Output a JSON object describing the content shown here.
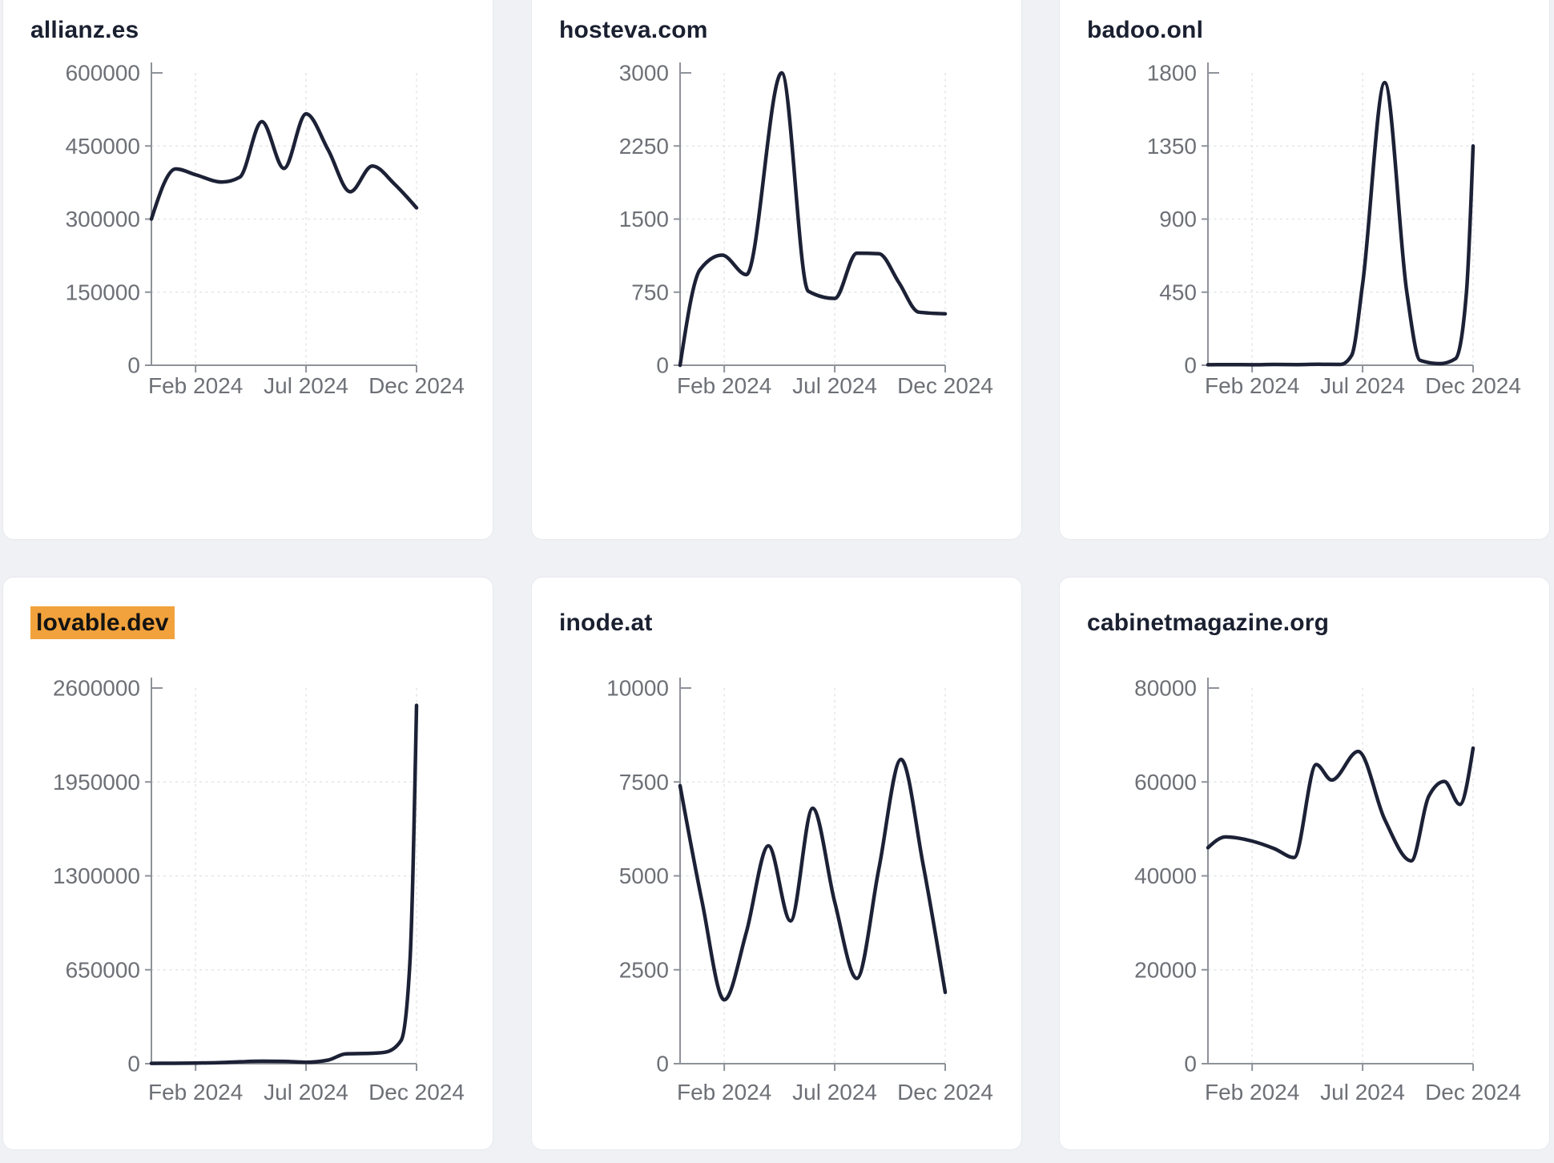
{
  "style": {
    "page_background": "#f0f1f5",
    "card_background": "#ffffff",
    "card_border": "#e7e9ee",
    "title_color": "#1a2030",
    "highlight_color": "#f1a23c",
    "line_color": "#1c2136",
    "axis_color": "#8e9299",
    "tick_label_color": "#6d7076",
    "grid_color": "#e3e5e9"
  },
  "chart_data": [
    {
      "type": "line",
      "title": "allianz.es",
      "highlighted": false,
      "x_range": [
        0,
        12
      ],
      "x_tick_positions": [
        2,
        7,
        12
      ],
      "x_tick_labels": [
        "Feb 2024",
        "Jul 2024",
        "Dec 2024"
      ],
      "ylim": [
        0,
        600000
      ],
      "y_ticks": [
        0,
        150000,
        300000,
        450000,
        600000
      ],
      "points": [
        [
          0,
          300000
        ],
        [
          1.1,
          403000
        ],
        [
          2,
          391000
        ],
        [
          3.2,
          376000
        ],
        [
          4,
          386000
        ],
        [
          5,
          500000
        ],
        [
          6,
          404000
        ],
        [
          7,
          516000
        ],
        [
          8,
          442000
        ],
        [
          9,
          356000
        ],
        [
          10,
          409000
        ],
        [
          11,
          372000
        ],
        [
          12,
          323000
        ]
      ]
    },
    {
      "type": "line",
      "title": "hosteva.com",
      "highlighted": false,
      "x_range": [
        0,
        12
      ],
      "x_tick_positions": [
        2,
        7,
        12
      ],
      "x_tick_labels": [
        "Feb 2024",
        "Jul 2024",
        "Dec 2024"
      ],
      "ylim": [
        0,
        3000
      ],
      "y_ticks": [
        0,
        750,
        1500,
        2250,
        3000
      ],
      "points": [
        [
          0,
          0
        ],
        [
          0.9,
          980
        ],
        [
          1.9,
          1130
        ],
        [
          3,
          930
        ],
        [
          4.6,
          3000
        ],
        [
          5.8,
          760
        ],
        [
          7,
          685
        ],
        [
          8,
          1150
        ],
        [
          9,
          1145
        ],
        [
          9.9,
          850
        ],
        [
          10.8,
          545
        ],
        [
          12,
          528
        ]
      ]
    },
    {
      "type": "line",
      "title": "badoo.onl",
      "highlighted": false,
      "x_range": [
        0,
        12
      ],
      "x_tick_positions": [
        2,
        7,
        12
      ],
      "x_tick_labels": [
        "Feb 2024",
        "Jul 2024",
        "Dec 2024"
      ],
      "ylim": [
        0,
        1800
      ],
      "y_ticks": [
        0,
        450,
        900,
        1350,
        1800
      ],
      "points": [
        [
          0,
          3
        ],
        [
          1,
          4
        ],
        [
          2,
          3
        ],
        [
          3,
          5
        ],
        [
          4,
          4
        ],
        [
          5,
          6
        ],
        [
          6,
          5
        ],
        [
          6.5,
          60
        ],
        [
          7,
          500
        ],
        [
          8,
          1740
        ],
        [
          9,
          450
        ],
        [
          9.6,
          30
        ],
        [
          10.5,
          10
        ],
        [
          11.2,
          40
        ],
        [
          11.7,
          450
        ],
        [
          12,
          1350
        ]
      ]
    },
    {
      "type": "line",
      "title": "lovable.dev",
      "highlighted": true,
      "x_range": [
        0,
        12
      ],
      "x_tick_positions": [
        2,
        7,
        12
      ],
      "x_tick_labels": [
        "Feb 2024",
        "Jul 2024",
        "Dec 2024"
      ],
      "ylim": [
        0,
        2600000
      ],
      "y_ticks": [
        0,
        650000,
        1300000,
        1950000,
        2600000
      ],
      "points": [
        [
          0,
          2000
        ],
        [
          1,
          3000
        ],
        [
          2,
          4500
        ],
        [
          3,
          7000
        ],
        [
          4,
          13000
        ],
        [
          5,
          17000
        ],
        [
          6,
          16000
        ],
        [
          7,
          10000
        ],
        [
          8,
          25000
        ],
        [
          8.8,
          68000
        ],
        [
          10,
          72000
        ],
        [
          10.6,
          80000
        ],
        [
          11.3,
          160000
        ],
        [
          11.7,
          700000
        ],
        [
          12,
          2480000
        ]
      ]
    },
    {
      "type": "line",
      "title": "inode.at",
      "highlighted": false,
      "x_range": [
        0,
        12
      ],
      "x_tick_positions": [
        2,
        7,
        12
      ],
      "x_tick_labels": [
        "Feb 2024",
        "Jul 2024",
        "Dec 2024"
      ],
      "ylim": [
        0,
        10000
      ],
      "y_ticks": [
        0,
        2500,
        5000,
        7500,
        10000
      ],
      "points": [
        [
          0,
          7400
        ],
        [
          1,
          4300
        ],
        [
          2,
          1700
        ],
        [
          3,
          3500
        ],
        [
          4,
          5800
        ],
        [
          5,
          3800
        ],
        [
          6,
          6800
        ],
        [
          7,
          4300
        ],
        [
          8,
          2270
        ],
        [
          9,
          5200
        ],
        [
          10,
          8100
        ],
        [
          11,
          5300
        ],
        [
          12,
          1900
        ]
      ]
    },
    {
      "type": "line",
      "title": "cabinetmagazine.org",
      "highlighted": false,
      "x_range": [
        0,
        12
      ],
      "x_tick_positions": [
        2,
        7,
        12
      ],
      "x_tick_labels": [
        "Feb 2024",
        "Jul 2024",
        "Dec 2024"
      ],
      "ylim": [
        0,
        80000
      ],
      "y_ticks": [
        0,
        20000,
        40000,
        60000,
        80000
      ],
      "points": [
        [
          0,
          46000
        ],
        [
          0.8,
          48300
        ],
        [
          2,
          47400
        ],
        [
          3,
          45800
        ],
        [
          3.9,
          43900
        ],
        [
          4.9,
          63700
        ],
        [
          5.6,
          60400
        ],
        [
          6.8,
          66500
        ],
        [
          8,
          52000
        ],
        [
          9.2,
          43200
        ],
        [
          10,
          57000
        ],
        [
          10.7,
          60100
        ],
        [
          11.4,
          55200
        ],
        [
          12,
          67200
        ]
      ]
    }
  ]
}
